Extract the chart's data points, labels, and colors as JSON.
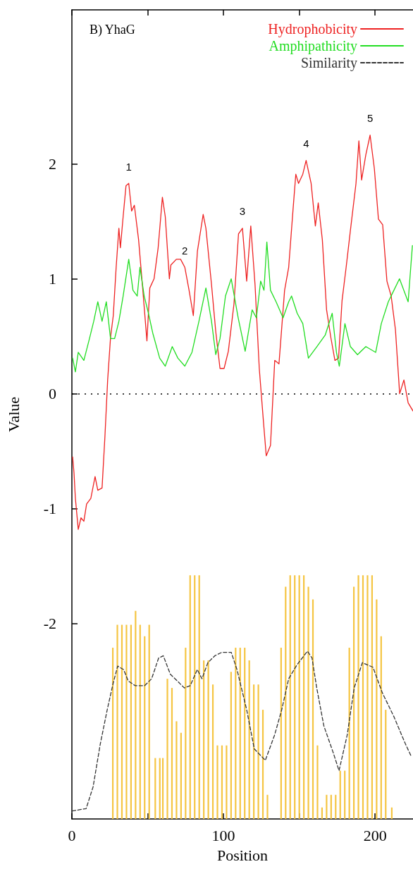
{
  "chart_data": {
    "type": "line",
    "title": "B) YhaG",
    "xlabel": "Position",
    "ylabel": "Value",
    "xlim": [
      0,
      225
    ],
    "ylim": [
      -3.7,
      3.34
    ],
    "xticks": [
      0,
      {
        "value": 50,
        "label": null
      },
      100,
      {
        "value": 150,
        "label": null
      },
      200
    ],
    "yticks": [
      -2,
      -1,
      0,
      1,
      2
    ],
    "legend": "top right",
    "marker": "none",
    "ref_lines": [
      {
        "axis": "y",
        "value": 0,
        "color": "#000000",
        "line_style": "dotted"
      }
    ],
    "annotations": [
      {
        "text": "1",
        "x": 37.5,
        "y": 1.83
      },
      {
        "text": "2",
        "x": 74.5,
        "y": 1.1
      },
      {
        "text": "3",
        "x": 112.5,
        "y": 1.44
      },
      {
        "text": "4",
        "x": 154.5,
        "y": 2.03
      },
      {
        "text": "5",
        "x": 196.7,
        "y": 2.25
      }
    ],
    "series": [
      {
        "type": "bar",
        "color": "#f5c542",
        "x": [
          27,
          30,
          33,
          36,
          39,
          42,
          45,
          48,
          51,
          55,
          58,
          60,
          63,
          66,
          69,
          72,
          75,
          78,
          81,
          84,
          87,
          90,
          93,
          96,
          99,
          102,
          105,
          108,
          111,
          114,
          117,
          120,
          123,
          126,
          129,
          138,
          141,
          144,
          147,
          150,
          153,
          156,
          159,
          162,
          165,
          168,
          171,
          174,
          177,
          180,
          183,
          186,
          189,
          192,
          195,
          198,
          201,
          204,
          207,
          211
        ],
        "base": [
          -3.7,
          -3.7,
          -3.7,
          -3.7,
          -3.7,
          -3.7,
          -3.7,
          -3.7,
          -3.7,
          -3.7,
          -3.7,
          -3.7,
          -3.7,
          -3.7,
          -3.7,
          -3.7,
          -3.7,
          -3.7,
          -3.7,
          -3.7,
          -3.7,
          -3.7,
          -3.7,
          -3.7,
          -3.7,
          -3.7,
          -3.7,
          -3.7,
          -3.7,
          -3.7,
          -3.7,
          -3.7,
          -3.7,
          -3.7,
          -3.7,
          -3.7,
          -3.7,
          -3.7,
          -3.7,
          -3.7,
          -3.7,
          -3.7,
          -3.7,
          -3.7,
          -3.7,
          -3.7,
          -3.7,
          -3.7,
          -3.7,
          -3.7,
          -3.7,
          -3.7,
          -3.7,
          -3.7,
          -3.7,
          -3.7,
          -3.7,
          -3.7,
          -3.7,
          -3.7
        ],
        "values": [
          1.49,
          1.69,
          1.69,
          1.69,
          1.69,
          1.81,
          1.69,
          1.59,
          1.69,
          0.53,
          0.53,
          0.53,
          1.22,
          1.14,
          0.85,
          0.75,
          1.49,
          2.12,
          2.12,
          2.12,
          1.38,
          1.38,
          1.17,
          0.64,
          0.64,
          0.64,
          1.28,
          1.49,
          1.49,
          1.49,
          1.38,
          1.17,
          1.17,
          0.95,
          0.21,
          1.49,
          2.02,
          2.12,
          2.12,
          2.12,
          2.12,
          2.02,
          1.91,
          0.64,
          0.1,
          0.21,
          0.21,
          0.21,
          0.42,
          0.42,
          1.49,
          2.02,
          2.12,
          2.12,
          2.12,
          2.12,
          1.91,
          1.59,
          0.95,
          0.1
        ]
      },
      {
        "name": "Hydrophobicity",
        "color": "#ee2222",
        "line_style": "solid",
        "x": [
          0.5,
          1.4,
          2.3,
          4.2,
          6,
          7.9,
          9.7,
          12.5,
          15.3,
          17.1,
          19.9,
          21.8,
          23.6,
          25.5,
          27.3,
          29.2,
          31,
          32,
          33.8,
          35.7,
          37.5,
          39.4,
          41.2,
          44,
          46.8,
          49.5,
          51.4,
          54.2,
          56.9,
          59.7,
          61.6,
          64.3,
          65.3,
          68.9,
          71.7,
          74.5,
          77.3,
          80.1,
          82.8,
          86.6,
          88.4,
          92.1,
          94.9,
          97.7,
          100.4,
          103.2,
          106.9,
          109.9,
          112.5,
          115.3,
          118,
          120.8,
          123.6,
          126.4,
          128.2,
          131,
          133.8,
          136.6,
          140.3,
          143,
          145.8,
          147.7,
          149.5,
          152.3,
          154.5,
          157.8,
          160.6,
          162.5,
          165.2,
          168,
          170.8,
          173.5,
          175.9,
          178.2,
          180.9,
          183.7,
          187.4,
          189.3,
          191.1,
          193.9,
          196.7,
          199.5,
          202.2,
          205,
          207.8,
          210.6,
          213.4,
          216.2,
          219,
          221.8,
          225
        ],
        "values": [
          -0.55,
          -0.69,
          -0.91,
          -1.18,
          -1.08,
          -1.11,
          -0.96,
          -0.91,
          -0.72,
          -0.84,
          -0.82,
          -0.37,
          0.12,
          0.49,
          0.68,
          1.1,
          1.44,
          1.27,
          1.54,
          1.81,
          1.83,
          1.59,
          1.64,
          1.34,
          0.9,
          0.46,
          0.92,
          1,
          1.27,
          1.71,
          1.54,
          1,
          1.12,
          1.17,
          1.17,
          1.1,
          0.9,
          0.68,
          1.24,
          1.56,
          1.44,
          0.95,
          0.54,
          0.22,
          0.22,
          0.37,
          0.78,
          1.39,
          1.44,
          0.98,
          1.46,
          0.95,
          0.22,
          -0.25,
          -0.54,
          -0.45,
          0.29,
          0.26,
          0.9,
          1.1,
          1.59,
          1.91,
          1.83,
          1.91,
          2.03,
          1.83,
          1.46,
          1.66,
          1.34,
          0.73,
          0.49,
          0.29,
          0.31,
          0.81,
          1.1,
          1.42,
          1.83,
          2.2,
          1.86,
          2.08,
          2.25,
          1.96,
          1.52,
          1.47,
          0.98,
          0.85,
          0.56,
          0,
          0.12,
          -0.08,
          -0.15
        ]
      },
      {
        "name": "Amphipathicity",
        "color": "#22dd22",
        "line_style": "solid",
        "x": [
          0.5,
          2.3,
          4.2,
          7.9,
          11.6,
          14.4,
          17.1,
          19.9,
          22.7,
          25.5,
          28.2,
          31,
          33.8,
          37.5,
          40.3,
          43.1,
          44.9,
          47.7,
          50.5,
          53.3,
          57.9,
          61.6,
          66.2,
          69.9,
          74.5,
          79.2,
          83.8,
          88.4,
          92.1,
          94.9,
          97.7,
          101.3,
          105.1,
          109.7,
          114.3,
          118.9,
          121.7,
          124.5,
          126.7,
          128.6,
          131,
          134.7,
          139.3,
          143,
          144.9,
          148.6,
          152.3,
          156,
          161.6,
          167.1,
          171.7,
          174.5,
          176.4,
          180.1,
          183.7,
          188.4,
          193.9,
          200.4,
          204.1,
          208.7,
          212.4,
          216.1,
          221.8,
          224.6
        ],
        "values": [
          0.31,
          0.19,
          0.36,
          0.29,
          0.48,
          0.63,
          0.8,
          0.63,
          0.8,
          0.48,
          0.48,
          0.63,
          0.85,
          1.17,
          0.9,
          0.85,
          1.1,
          0.85,
          0.7,
          0.53,
          0.31,
          0.24,
          0.41,
          0.31,
          0.24,
          0.36,
          0.63,
          0.92,
          0.63,
          0.34,
          0.48,
          0.85,
          1,
          0.66,
          0.37,
          0.73,
          0.66,
          0.98,
          0.9,
          1.32,
          0.9,
          0.8,
          0.66,
          0.8,
          0.85,
          0.7,
          0.61,
          0.31,
          0.41,
          0.51,
          0.7,
          0.36,
          0.24,
          0.61,
          0.41,
          0.34,
          0.41,
          0.36,
          0.61,
          0.8,
          0.9,
          1,
          0.8,
          1.29
        ]
      },
      {
        "name": "Similarity",
        "color": "#333333",
        "line_style": "dashed",
        "x": [
          0.2,
          9.4,
          14,
          18.7,
          23.3,
          27.2,
          30.2,
          34.1,
          37.2,
          41.8,
          48,
          52.6,
          57.2,
          60.3,
          64.9,
          69.6,
          74.2,
          78.1,
          82.7,
          85.8,
          89.7,
          94.3,
          98.9,
          105.1,
          108.9,
          115.3,
          120.3,
          127.6,
          133.7,
          138.4,
          143,
          148.4,
          155.4,
          158.4,
          161.5,
          166.2,
          172.3,
          176.2,
          181.6,
          186.2,
          191.6,
          198.6,
          204.7,
          212.4,
          220.1,
          224
        ],
        "values": [
          -3.63,
          -3.61,
          -3.42,
          -3.05,
          -2.75,
          -2.52,
          -2.37,
          -2.4,
          -2.5,
          -2.54,
          -2.54,
          -2.48,
          -2.3,
          -2.28,
          -2.44,
          -2.5,
          -2.56,
          -2.54,
          -2.4,
          -2.48,
          -2.34,
          -2.28,
          -2.25,
          -2.25,
          -2.4,
          -2.75,
          -3.09,
          -3.19,
          -2.97,
          -2.75,
          -2.48,
          -2.36,
          -2.24,
          -2.3,
          -2.56,
          -2.89,
          -3.12,
          -3.28,
          -2.97,
          -2.56,
          -2.34,
          -2.38,
          -2.6,
          -2.81,
          -3.05,
          -3.16
        ]
      }
    ]
  }
}
